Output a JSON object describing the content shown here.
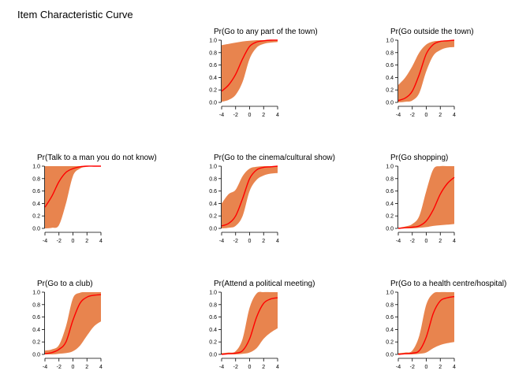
{
  "page": {
    "title": "Item Characteristic Curve"
  },
  "colors": {
    "band": "#e8844e",
    "curve": "#ff0000",
    "axis": "#000000"
  },
  "chart_data": {
    "type": "line",
    "layout": "3x3 grid, top-left panel empty",
    "xlim": [
      -4,
      4
    ],
    "ylim": [
      0,
      1
    ],
    "xticks": [
      -4,
      -2,
      0,
      2,
      4
    ],
    "yticks": [
      0.0,
      0.2,
      0.4,
      0.6,
      0.8,
      1.0
    ],
    "xtick_labels": [
      "-4",
      "-2",
      "0",
      "2",
      "4"
    ],
    "ytick_labels": [
      "0.0",
      "0.2",
      "0.4",
      "0.6",
      "0.8",
      "1.0"
    ],
    "x": [
      -4,
      -3,
      -2,
      -1,
      0,
      1,
      2,
      3,
      4
    ],
    "panels": [
      {
        "title": "Pr(Go to any part of the town)",
        "row": 0,
        "col": 1,
        "curve": [
          0.18,
          0.28,
          0.45,
          0.7,
          0.9,
          0.97,
          0.99,
          1.0,
          1.0
        ],
        "lower": [
          0.01,
          0.04,
          0.12,
          0.33,
          0.7,
          0.88,
          0.94,
          0.96,
          0.97
        ],
        "upper": [
          0.92,
          0.94,
          0.96,
          0.98,
          0.99,
          1.0,
          1.0,
          1.0,
          1.0
        ]
      },
      {
        "title": "Pr(Go outside the town)",
        "row": 0,
        "col": 2,
        "curve": [
          0.03,
          0.07,
          0.18,
          0.45,
          0.78,
          0.93,
          0.98,
          0.99,
          1.0
        ],
        "lower": [
          0.0,
          0.01,
          0.03,
          0.15,
          0.5,
          0.75,
          0.84,
          0.88,
          0.89
        ],
        "upper": [
          0.28,
          0.4,
          0.58,
          0.8,
          0.93,
          0.98,
          0.99,
          1.0,
          1.0
        ]
      },
      {
        "title": "Pr(Talk to a man you do not know)",
        "row": 1,
        "col": 0,
        "curve": [
          0.34,
          0.52,
          0.75,
          0.9,
          0.96,
          0.99,
          1.0,
          1.0,
          1.0
        ],
        "lower": [
          0.0,
          0.01,
          0.05,
          0.4,
          0.84,
          0.96,
          0.99,
          1.0,
          1.0
        ],
        "upper": [
          1.0,
          1.0,
          1.0,
          1.0,
          1.0,
          1.0,
          1.0,
          1.0,
          1.0
        ]
      },
      {
        "title": "Pr(Go to the cinema/cultural show)",
        "row": 1,
        "col": 1,
        "curve": [
          0.04,
          0.08,
          0.2,
          0.48,
          0.8,
          0.94,
          0.98,
          0.99,
          1.0
        ],
        "lower": [
          0.0,
          0.01,
          0.04,
          0.2,
          0.6,
          0.78,
          0.85,
          0.88,
          0.89
        ],
        "upper": [
          0.4,
          0.55,
          0.62,
          0.84,
          0.96,
          0.99,
          1.0,
          1.0,
          1.0
        ]
      },
      {
        "title": "Pr(Go shopping)",
        "row": 1,
        "col": 2,
        "curve": [
          0.0,
          0.01,
          0.02,
          0.04,
          0.12,
          0.3,
          0.55,
          0.72,
          0.82
        ],
        "lower": [
          0.0,
          0.0,
          0.0,
          0.01,
          0.02,
          0.04,
          0.05,
          0.06,
          0.07
        ],
        "upper": [
          0.01,
          0.03,
          0.07,
          0.2,
          0.6,
          0.95,
          1.0,
          1.0,
          1.0
        ]
      },
      {
        "title": "Pr(Go to a club)",
        "row": 2,
        "col": 0,
        "curve": [
          0.01,
          0.03,
          0.08,
          0.2,
          0.55,
          0.82,
          0.92,
          0.95,
          0.96
        ],
        "lower": [
          0.0,
          0.0,
          0.01,
          0.02,
          0.05,
          0.14,
          0.3,
          0.45,
          0.53
        ],
        "upper": [
          0.06,
          0.08,
          0.15,
          0.45,
          0.9,
          0.99,
          1.0,
          1.0,
          1.0
        ]
      },
      {
        "title": "Pr(Attend a political meeting)",
        "row": 2,
        "col": 1,
        "curve": [
          0.0,
          0.01,
          0.02,
          0.06,
          0.25,
          0.6,
          0.82,
          0.89,
          0.91
        ],
        "lower": [
          0.0,
          0.0,
          0.0,
          0.01,
          0.03,
          0.1,
          0.25,
          0.35,
          0.42
        ],
        "upper": [
          0.02,
          0.03,
          0.05,
          0.25,
          0.75,
          0.98,
          1.0,
          1.0,
          1.0
        ]
      },
      {
        "title": "Pr(Go to a health centre/hospital)",
        "row": 2,
        "col": 2,
        "curve": [
          0.0,
          0.01,
          0.02,
          0.06,
          0.28,
          0.66,
          0.86,
          0.91,
          0.93
        ],
        "lower": [
          0.0,
          0.0,
          0.0,
          0.01,
          0.03,
          0.1,
          0.15,
          0.18,
          0.2
        ],
        "upper": [
          0.02,
          0.03,
          0.06,
          0.3,
          0.8,
          0.98,
          1.0,
          1.0,
          1.0
        ]
      }
    ]
  }
}
